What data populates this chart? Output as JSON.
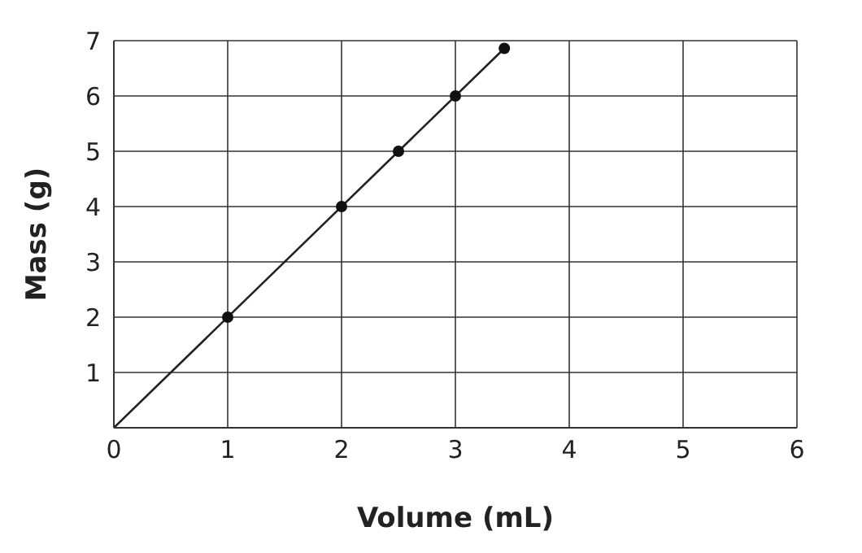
{
  "chart_data": {
    "type": "line",
    "xlabel": "Volume (mL)",
    "ylabel": "Mass (g)",
    "xlim": [
      0,
      6
    ],
    "xticks": [
      0,
      1,
      2,
      3,
      4,
      5,
      6
    ],
    "ylim": [
      0,
      7
    ],
    "yticks": [
      {
        "value": 0,
        "label": null
      },
      1,
      2,
      3,
      4,
      5,
      6,
      7
    ],
    "grid": true,
    "series": [
      {
        "color": "#222222",
        "x": [
          0,
          3.43
        ],
        "values": [
          0,
          6.86
        ],
        "marker": "none",
        "line_style": "solid"
      },
      {
        "type": "scatter",
        "color": "#111111",
        "x": [
          1,
          2,
          2.5,
          3,
          3.43
        ],
        "values": [
          2,
          4,
          5,
          6,
          6.86
        ],
        "marker": "circle"
      }
    ]
  }
}
